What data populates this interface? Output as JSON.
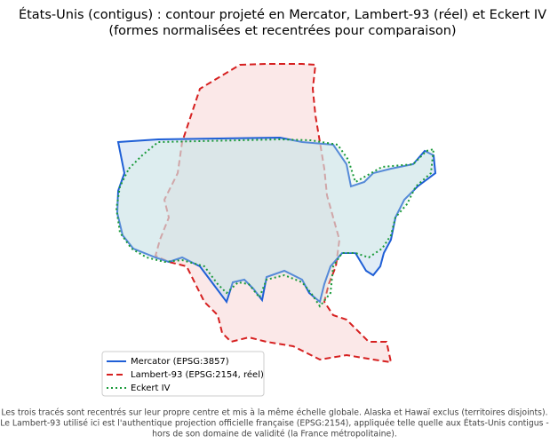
{
  "title": [
    "États-Unis (contigus) : contour projeté en Mercator, Lambert-93 (réel) et Eckert IV",
    "(formes normalisées et recentrées pour comparaison)"
  ],
  "legend": [
    {
      "label": "Mercator (EPSG:3857)",
      "color": "#1f5fd6"
    },
    {
      "label": "Lambert-93 (EPSG:2154, réel)",
      "color": "#d62020"
    },
    {
      "label": "Eckert IV",
      "color": "#1a9a3a"
    }
  ],
  "footnote": [
    "Les trois tracés sont recentrés sur leur propre centre et mis à la même échelle globale. Alaska et Hawaï exclus (territoires disjoints).",
    "Le Lambert-93 utilisé ici est l'authentique projection officielle française (EPSG:2154), appliquée telle quelle aux États-Unis contigus -",
    "hors de son domaine de validité (la France métropolitaine)."
  ]
}
